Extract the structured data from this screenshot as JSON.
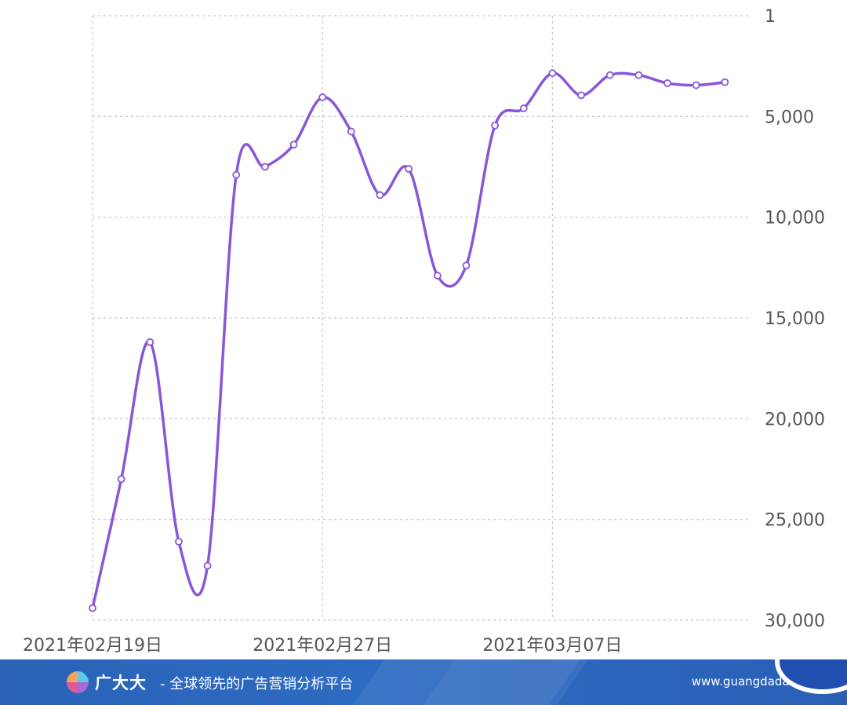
{
  "chart_data": {
    "type": "line",
    "y_inverted": true,
    "ylim": [
      1,
      30000
    ],
    "y_ticks": [
      1,
      5000,
      10000,
      15000,
      20000,
      25000,
      30000
    ],
    "y_tick_labels": [
      "1",
      "5,000",
      "10,000",
      "15,000",
      "20,000",
      "25,000",
      "30,000"
    ],
    "x_tick_labels": [
      "2021年02月19日",
      "2021年02月27日",
      "2021年03月07日"
    ],
    "x": [
      "2021-02-19",
      "2021-02-20",
      "2021-02-21",
      "2021-02-22",
      "2021-02-23",
      "2021-02-24",
      "2021-02-25",
      "2021-02-26",
      "2021-02-27",
      "2021-02-28",
      "2021-03-01",
      "2021-03-02",
      "2021-03-03",
      "2021-03-04",
      "2021-03-05",
      "2021-03-06",
      "2021-03-07",
      "2021-03-08",
      "2021-03-09",
      "2021-03-10",
      "2021-03-11",
      "2021-03-12",
      "2021-03-13"
    ],
    "series": [
      {
        "color": "#8a56d8",
        "values": [
          29400,
          23000,
          16200,
          26100,
          27300,
          7900,
          7500,
          6400,
          4050,
          5750,
          8900,
          7600,
          12900,
          12400,
          5450,
          4600,
          2850,
          3950,
          2950,
          2950,
          3350,
          3450,
          3300
        ]
      }
    ],
    "grid": true,
    "legend": "none"
  },
  "footer": {
    "brand": "广大大",
    "slogan": "- 全球领先的广告营销分析平台",
    "site": "www.guangdada.net"
  },
  "colors": {
    "line": "#8a56d8",
    "grid": "#c8c8c8",
    "footer_bg": "#2a63b8"
  }
}
